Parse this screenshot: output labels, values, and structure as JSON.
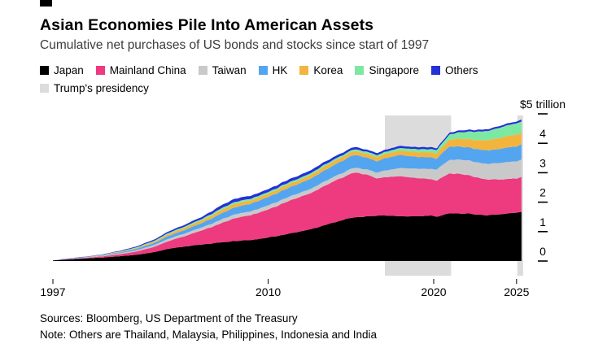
{
  "header": {
    "title": "Asian Economies Pile Into American Assets",
    "subtitle": "Cumulative net purchases of US bonds and stocks since start of 1997"
  },
  "legend": {
    "rows": [
      [
        {
          "label": "Japan",
          "color": "#000000"
        },
        {
          "label": "Mainland China",
          "color": "#ee3a7f"
        },
        {
          "label": "Taiwan",
          "color": "#c9c9c9"
        },
        {
          "label": "HK",
          "color": "#54a5f0"
        },
        {
          "label": "Korea",
          "color": "#f3b43e"
        },
        {
          "label": "Singapore",
          "color": "#7de8a2"
        },
        {
          "label": "Others",
          "color": "#2430d8"
        }
      ],
      [
        {
          "label": "Trump's presidency",
          "color": "#dcdcdc"
        }
      ]
    ]
  },
  "chart_data": {
    "type": "area",
    "stacked": true,
    "title": "Asian Economies Pile Into American Assets",
    "subtitle": "Cumulative net purchases of US bonds and stocks since start of 1997",
    "unit": "USD trillions",
    "xlim": [
      1997,
      2025.42
    ],
    "ylim": [
      0,
      5
    ],
    "x": [
      1997,
      1998,
      1999,
      2000,
      2001,
      2002,
      2003,
      2004,
      2005,
      2006,
      2007,
      2008,
      2009,
      2010,
      2011,
      2012,
      2013,
      2014,
      2015,
      2015.3,
      2016,
      2016.6,
      2017,
      2018,
      2019,
      2019.8,
      2020.2,
      2020.6,
      2021,
      2022,
      2023,
      2024,
      2024.5,
      2025,
      2025.3
    ],
    "series": [
      {
        "name": "Japan",
        "color": "#000000",
        "values": [
          0.02,
          0.06,
          0.09,
          0.12,
          0.16,
          0.21,
          0.29,
          0.42,
          0.5,
          0.56,
          0.62,
          0.68,
          0.72,
          0.8,
          0.9,
          1.0,
          1.14,
          1.32,
          1.47,
          1.49,
          1.52,
          1.54,
          1.55,
          1.52,
          1.52,
          1.55,
          1.5,
          1.58,
          1.62,
          1.6,
          1.56,
          1.58,
          1.62,
          1.64,
          1.66
        ]
      },
      {
        "name": "Mainland China",
        "color": "#ee3a7f",
        "values": [
          0.0,
          0.01,
          0.02,
          0.04,
          0.07,
          0.11,
          0.17,
          0.26,
          0.36,
          0.48,
          0.62,
          0.78,
          0.85,
          0.95,
          1.08,
          1.18,
          1.28,
          1.4,
          1.5,
          1.52,
          1.4,
          1.26,
          1.3,
          1.36,
          1.3,
          1.24,
          1.22,
          1.3,
          1.35,
          1.32,
          1.22,
          1.18,
          1.18,
          1.16,
          1.18
        ]
      },
      {
        "name": "Taiwan",
        "color": "#c9c9c9",
        "values": [
          0.0,
          0.01,
          0.01,
          0.02,
          0.03,
          0.04,
          0.06,
          0.08,
          0.09,
          0.1,
          0.12,
          0.13,
          0.13,
          0.14,
          0.14,
          0.14,
          0.15,
          0.15,
          0.16,
          0.16,
          0.18,
          0.2,
          0.22,
          0.28,
          0.32,
          0.35,
          0.38,
          0.43,
          0.46,
          0.5,
          0.52,
          0.56,
          0.58,
          0.58,
          0.58
        ]
      },
      {
        "name": "HK",
        "color": "#54a5f0",
        "values": [
          0.0,
          0.01,
          0.01,
          0.02,
          0.03,
          0.05,
          0.07,
          0.1,
          0.12,
          0.15,
          0.2,
          0.24,
          0.26,
          0.28,
          0.31,
          0.33,
          0.36,
          0.4,
          0.43,
          0.43,
          0.4,
          0.38,
          0.42,
          0.44,
          0.4,
          0.4,
          0.36,
          0.42,
          0.45,
          0.44,
          0.46,
          0.48,
          0.5,
          0.5,
          0.52
        ]
      },
      {
        "name": "Korea",
        "color": "#f3b43e",
        "values": [
          0.0,
          0.0,
          0.01,
          0.01,
          0.02,
          0.03,
          0.04,
          0.06,
          0.08,
          0.09,
          0.11,
          0.12,
          0.11,
          0.11,
          0.12,
          0.12,
          0.13,
          0.13,
          0.13,
          0.13,
          0.13,
          0.14,
          0.14,
          0.15,
          0.16,
          0.17,
          0.18,
          0.2,
          0.24,
          0.28,
          0.33,
          0.37,
          0.39,
          0.4,
          0.4
        ]
      },
      {
        "name": "Singapore",
        "color": "#7de8a2",
        "values": [
          0.0,
          0.0,
          0.0,
          0.01,
          0.01,
          0.02,
          0.03,
          0.04,
          0.04,
          0.05,
          0.06,
          0.06,
          0.06,
          0.06,
          0.06,
          0.06,
          0.06,
          0.06,
          0.06,
          0.06,
          0.07,
          0.07,
          0.07,
          0.09,
          0.1,
          0.11,
          0.12,
          0.14,
          0.18,
          0.25,
          0.3,
          0.35,
          0.37,
          0.39,
          0.37
        ]
      },
      {
        "name": "Others",
        "color": "#2430d8",
        "values": [
          0.0,
          0.01,
          0.01,
          0.01,
          0.02,
          0.03,
          0.04,
          0.05,
          0.06,
          0.07,
          0.1,
          0.11,
          0.1,
          0.1,
          0.1,
          0.1,
          0.1,
          0.09,
          0.08,
          0.08,
          0.07,
          0.07,
          0.07,
          0.07,
          0.07,
          0.07,
          0.06,
          0.06,
          0.06,
          0.06,
          0.06,
          0.06,
          0.06,
          0.06,
          0.07
        ]
      }
    ],
    "bands": [
      {
        "label": "Trump's presidency",
        "from": 2017.05,
        "to": 2021.05,
        "color": "#dcdcdc"
      },
      {
        "label": "Trump's presidency",
        "from": 2025.05,
        "to": 2025.4,
        "color": "#dcdcdc"
      }
    ],
    "x_ticks": [
      {
        "value": 1997,
        "label": "1997"
      },
      {
        "value": 2010,
        "label": "2010"
      },
      {
        "value": 2020,
        "label": "2020"
      },
      {
        "value": 2025,
        "label": "2025"
      }
    ],
    "y_ticks": [
      {
        "value": 0,
        "label": "0"
      },
      {
        "value": 1,
        "label": "1"
      },
      {
        "value": 2,
        "label": "2"
      },
      {
        "value": 3,
        "label": "3"
      },
      {
        "value": 4,
        "label": "4"
      },
      {
        "value": 5,
        "label": "$5 trillion"
      }
    ],
    "legend_position": "top",
    "grid": false
  },
  "footer": {
    "sources": "Sources: Bloomberg, US Department of the Treasury",
    "note": "Note: Others are Thailand, Malaysia, Philippines, Indonesia and India"
  }
}
